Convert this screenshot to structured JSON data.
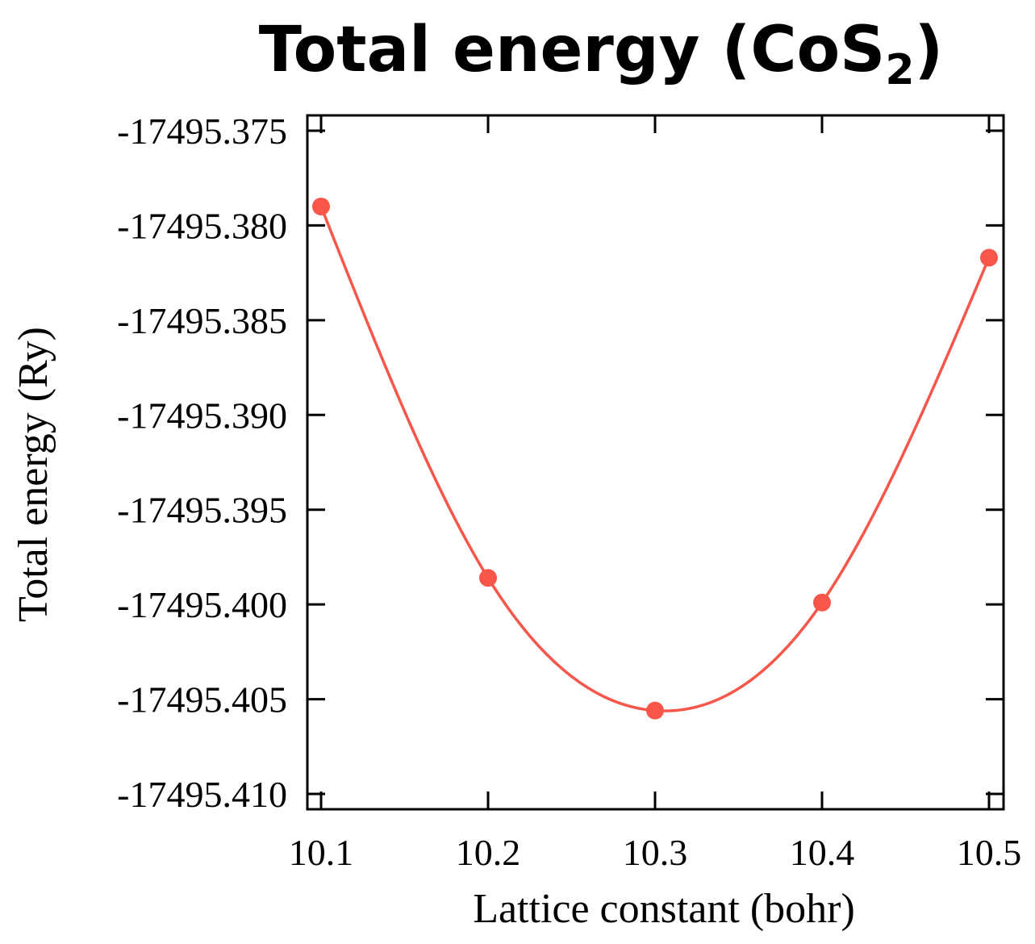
{
  "chart_data": {
    "type": "line",
    "title": "Total energy (CoS",
    "title_subscript": "2",
    "title_close": ")",
    "xlabel": "Lattice constant (bohr)",
    "ylabel": "Total energy (Ry)",
    "xlim": [
      10.1,
      10.5
    ],
    "ylim": [
      -17495.4105,
      -17495.3745
    ],
    "x_ticks": [
      10.1,
      10.2,
      10.3,
      10.4,
      10.5
    ],
    "x_tick_labels": [
      "10.1",
      "10.2",
      "10.3",
      "10.4",
      "10.5"
    ],
    "y_ticks": [
      -17495.375,
      -17495.38,
      -17495.385,
      -17495.39,
      -17495.395,
      -17495.4,
      -17495.405,
      -17495.41
    ],
    "y_tick_labels": [
      "-17495.375",
      "-17495.380",
      "-17495.385",
      "-17495.390",
      "-17495.395",
      "-17495.400",
      "-17495.405",
      "-17495.410"
    ],
    "grid": false,
    "series": [
      {
        "points": [
          {
            "x": 10.1,
            "y": -17495.379
          },
          {
            "x": 10.2,
            "y": -17495.3986
          },
          {
            "x": 10.3,
            "y": -17495.4056
          },
          {
            "x": 10.4,
            "y": -17495.3999
          },
          {
            "x": 10.5,
            "y": -17495.3817
          }
        ],
        "fit": "smooth curve",
        "color": "#f8564a"
      }
    ]
  }
}
